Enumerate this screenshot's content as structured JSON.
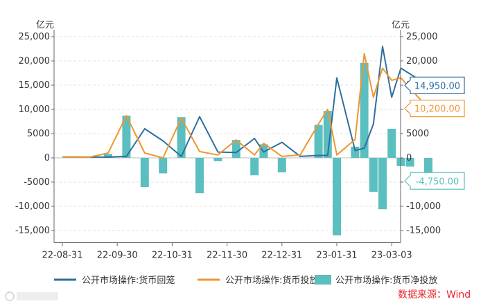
{
  "chart_data": {
    "type": "bar",
    "unit_left": "亿元",
    "unit_right": "亿元",
    "ylim": [
      -17500,
      25000
    ],
    "y_ticks": [
      25000,
      20000,
      15000,
      10000,
      5000,
      0,
      -5000,
      -10000,
      -15000
    ],
    "y_tick_labels_left": [
      "25,000",
      "20,000",
      "15,000",
      "10,000",
      "5000",
      "0",
      "-5000",
      "-10,000",
      "-15,000"
    ],
    "y_ticks_right": [
      25000,
      20000,
      15000,
      10000,
      5000,
      0,
      -5000,
      -10000,
      -15000
    ],
    "y_tick_labels_right": [
      "25,000",
      "20,000",
      "15,000",
      "10,000",
      "5000",
      "0",
      "-5000",
      "-10,000",
      "-15,000"
    ],
    "x_tick_labels": [
      "22-08-31",
      "22-09-30",
      "22-10-31",
      "22-11-30",
      "22-12-31",
      "23-01-31",
      "23-03-03"
    ],
    "x_tick_index": [
      0,
      6,
      12,
      18,
      24,
      30,
      36
    ],
    "x_count": 37,
    "grid": true,
    "legend_position": "bottom",
    "series": [
      {
        "name": "公开市场操作:货币回笼",
        "kind": "line",
        "color": "#2e6f9e",
        "points": [
          [
            0,
            200
          ],
          [
            3,
            150
          ],
          [
            5,
            150
          ],
          [
            7,
            300
          ],
          [
            9,
            6000
          ],
          [
            11,
            3500
          ],
          [
            13,
            300
          ],
          [
            15,
            8500
          ],
          [
            17,
            1200
          ],
          [
            19,
            1100
          ],
          [
            21,
            4000
          ],
          [
            22,
            1200
          ],
          [
            24,
            3200
          ],
          [
            26,
            300
          ],
          [
            28,
            500
          ],
          [
            29,
            500
          ],
          [
            30,
            16500
          ],
          [
            32,
            1500
          ],
          [
            33,
            2000
          ],
          [
            34,
            7000
          ],
          [
            35,
            23000
          ],
          [
            36,
            12500
          ],
          [
            37,
            18500
          ],
          [
            40,
            14950
          ]
        ]
      },
      {
        "name": "公开市场操作:货币投放",
        "kind": "line",
        "color": "#ef9630",
        "points": [
          [
            0,
            200
          ],
          [
            3,
            150
          ],
          [
            5,
            1000
          ],
          [
            7,
            8700
          ],
          [
            9,
            1000
          ],
          [
            11,
            0
          ],
          [
            13,
            8200
          ],
          [
            15,
            1300
          ],
          [
            17,
            600
          ],
          [
            19,
            3700
          ],
          [
            21,
            600
          ],
          [
            22,
            3000
          ],
          [
            24,
            300
          ],
          [
            26,
            600
          ],
          [
            28,
            7000
          ],
          [
            29,
            10000
          ],
          [
            30,
            600
          ],
          [
            32,
            3800
          ],
          [
            33,
            21500
          ],
          [
            34,
            12500
          ],
          [
            35,
            18500
          ],
          [
            36,
            16000
          ],
          [
            37,
            16500
          ],
          [
            40,
            10200
          ]
        ]
      },
      {
        "name": "公开市场操作:货币净投放",
        "kind": "bar",
        "color": "#5bbfc0",
        "points": [
          [
            5,
            800
          ],
          [
            7,
            8700
          ],
          [
            9,
            -6000
          ],
          [
            11,
            -3200
          ],
          [
            13,
            8400
          ],
          [
            15,
            -7300
          ],
          [
            17,
            -700
          ],
          [
            19,
            3700
          ],
          [
            21,
            -3600
          ],
          [
            22,
            2800
          ],
          [
            24,
            -3000
          ],
          [
            28,
            6800
          ],
          [
            29,
            9700
          ],
          [
            30,
            -16000
          ],
          [
            32,
            2300
          ],
          [
            33,
            19600
          ],
          [
            34,
            -7000
          ],
          [
            35,
            -10600
          ],
          [
            36,
            6000
          ],
          [
            37,
            -1700
          ],
          [
            38,
            -1800
          ],
          [
            40,
            -4750
          ]
        ]
      }
    ],
    "callouts": [
      {
        "text": "14,950.00",
        "value": 14950,
        "color": "#2e6f9e"
      },
      {
        "text": "10,200.00",
        "value": 10200,
        "color": "#ef9630"
      },
      {
        "text": "-4,750.00",
        "value": -4750,
        "color": "#5bbfc0"
      }
    ],
    "source": "数据来源：Wind",
    "source_color": "#e8262f"
  }
}
